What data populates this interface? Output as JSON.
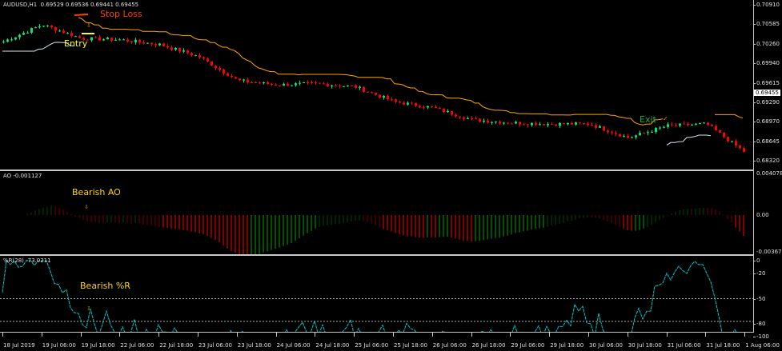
{
  "main_header": "AUDUSD,H1  0.69529 0.69536 0.69441 0.69455",
  "ao_header": "AO -0.001127",
  "wpr_header": "%R(28) -73.0211",
  "annotations": {
    "stop_loss": "Stop Loss",
    "entry": "Entry",
    "exit": "Exit",
    "bearish_ao": "Bearish AO",
    "bearish_wpr": "Bearish %R"
  },
  "colors": {
    "bull": "#00e676",
    "bear": "#ff0000",
    "trail_upper": "#ffa500",
    "trail_lower": "#cfe8f0",
    "ao_up": "#00a000",
    "ao_down": "#ff0000",
    "wpr": "#00c8c8",
    "stop": "#ff4000",
    "entry": "#ffff00",
    "exit": "#22aa44"
  },
  "current_price": "0.69455",
  "price_axis": [
    "0.70910",
    "0.70585",
    "0.70260",
    "0.69940",
    "0.69615",
    "0.69290",
    "0.68970",
    "0.68645",
    "0.68320"
  ],
  "ao_axis": [
    "0.004078",
    "0.00",
    "-0.003678"
  ],
  "wpr_axis": [
    "0",
    "-20",
    "-50",
    "-80",
    "-100"
  ],
  "time_axis": [
    "18 Jul 2019",
    "19 Jul 06:00",
    "19 Jul 18:00",
    "22 Jul 06:00",
    "22 Jul 18:00",
    "23 Jul 06:00",
    "23 Jul 18:00",
    "24 Jul 06:00",
    "24 Jul 18:00",
    "25 Jul 06:00",
    "25 Jul 18:00",
    "26 Jul 06:00",
    "26 Jul 18:00",
    "29 Jul 06:00",
    "29 Jul 18:00",
    "30 Jul 06:00",
    "30 Jul 18:00",
    "31 Jul 06:00",
    "31 Jul 18:00",
    "1 Aug 06:00"
  ],
  "chart_data": {
    "type": "candlestick",
    "symbol": "AUDUSD,H1",
    "x": [
      "18 Jul 2019",
      "19 Jul 06:00",
      "19 Jul 18:00",
      "22 Jul 06:00",
      "22 Jul 18:00",
      "23 Jul 06:00",
      "23 Jul 18:00",
      "24 Jul 06:00",
      "24 Jul 18:00",
      "25 Jul 06:00",
      "25 Jul 18:00",
      "26 Jul 06:00",
      "26 Jul 18:00",
      "29 Jul 06:00",
      "29 Jul 18:00",
      "30 Jul 06:00",
      "30 Jul 18:00",
      "31 Jul 06:00",
      "31 Jul 18:00",
      "1 Aug 06:00"
    ],
    "close_approx": [
      0.703,
      0.7058,
      0.7035,
      0.7033,
      0.7025,
      0.7005,
      0.6965,
      0.6958,
      0.696,
      0.6955,
      0.693,
      0.692,
      0.69,
      0.6895,
      0.6893,
      0.6893,
      0.687,
      0.689,
      0.6893,
      0.6845
    ],
    "ylim": [
      0.682,
      0.7093
    ],
    "ao_ylim": [
      -0.003678,
      0.004078
    ],
    "wpr_ylim": [
      -100,
      0
    ],
    "wpr_levels": [
      -50,
      -80
    ]
  }
}
